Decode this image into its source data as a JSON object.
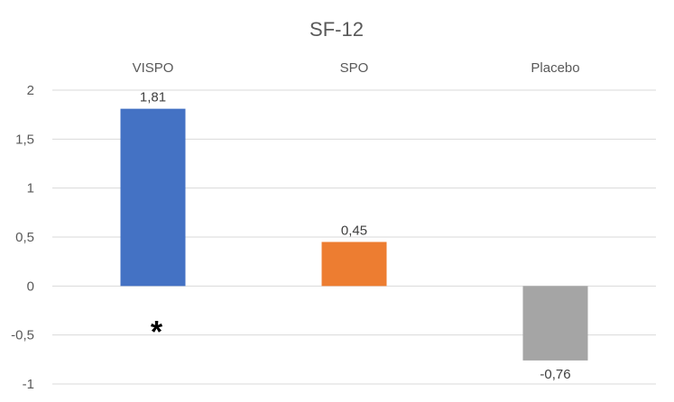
{
  "chart_data": {
    "type": "bar",
    "title": "SF-12",
    "categories": [
      "VISPO",
      "SPO",
      "Placebo"
    ],
    "values": [
      1.81,
      0.45,
      -0.76
    ],
    "data_labels": [
      "1,81",
      "0,45",
      "-0,76"
    ],
    "colors": [
      "#4472c4",
      "#ed7d31",
      "#a5a5a5"
    ],
    "ylim": [
      -1,
      2
    ],
    "yticks": [
      -1,
      -0.5,
      0,
      0.5,
      1,
      1.5,
      2
    ],
    "ytick_labels": [
      "-1",
      "-0,5",
      "0",
      "0,5",
      "1",
      "1,5",
      "2"
    ],
    "grid": true,
    "legend": "none",
    "category_labels_position": "top",
    "annotation": {
      "text": "*",
      "category": "VISPO",
      "y": -0.35
    }
  }
}
